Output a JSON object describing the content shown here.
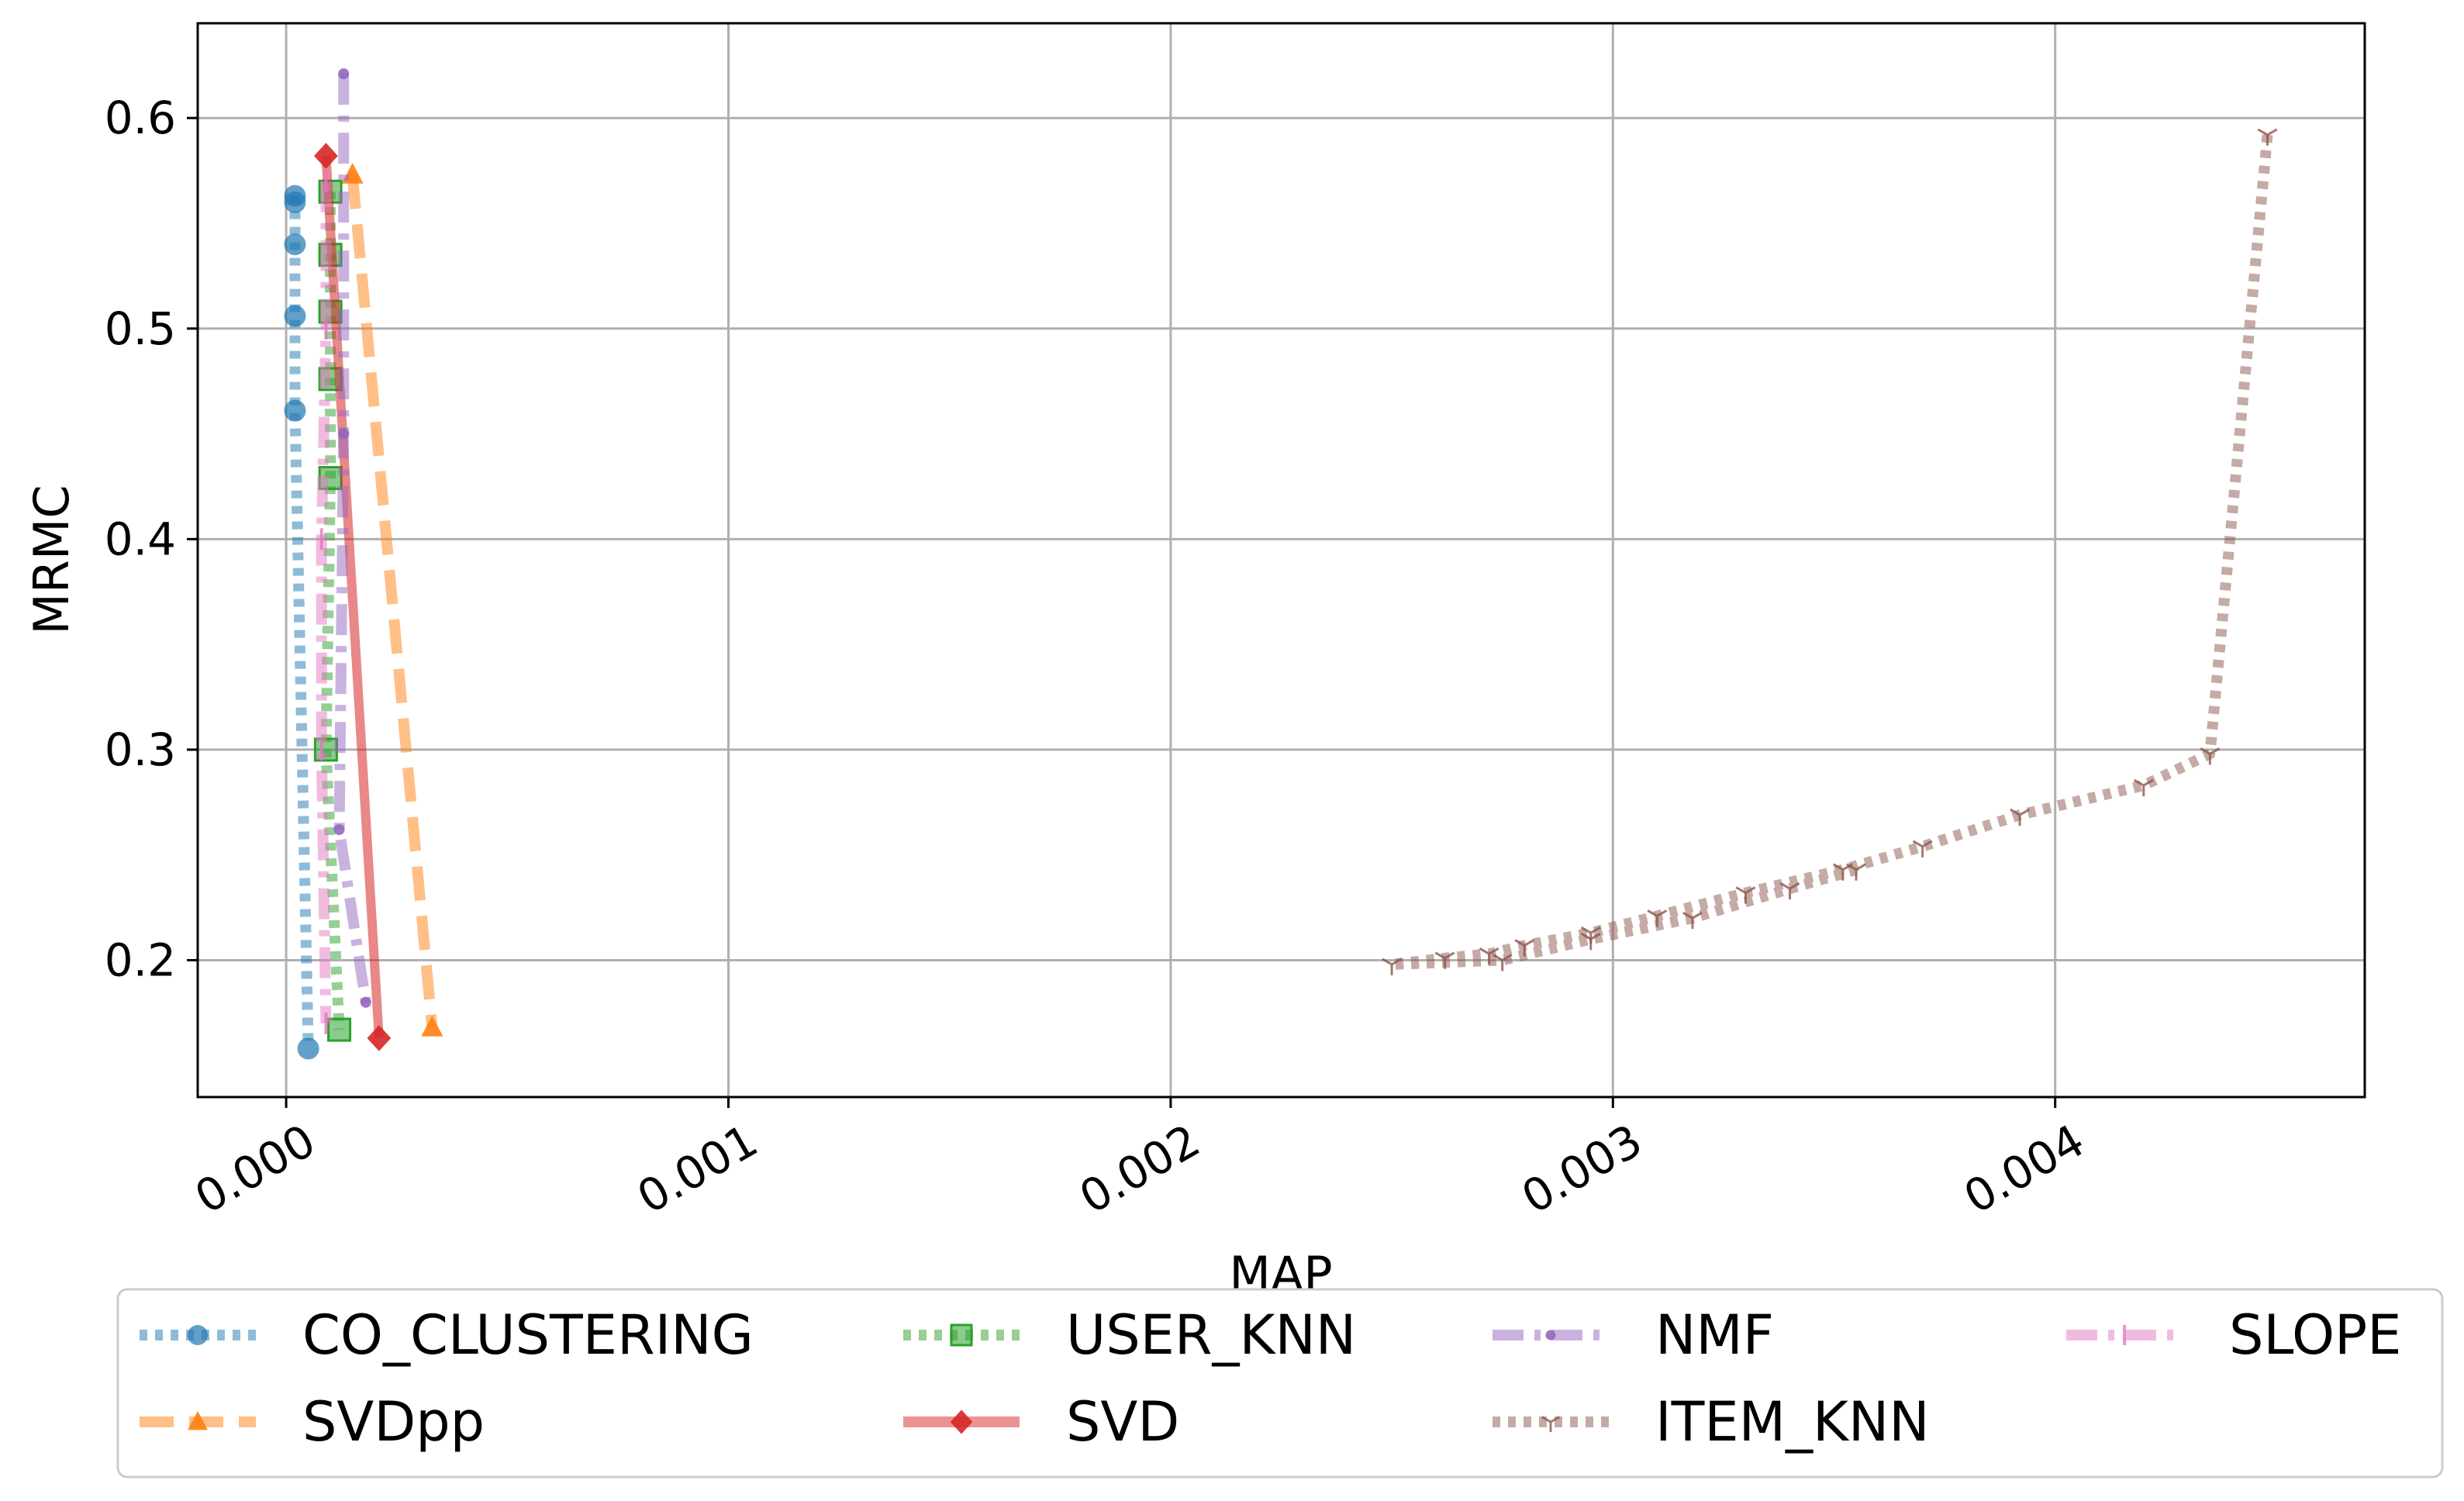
{
  "chart_data": {
    "type": "line",
    "title": "",
    "xlabel": "MAP",
    "ylabel": "MRMC",
    "xlim": [
      -0.0002,
      0.0047
    ],
    "ylim": [
      0.135,
      0.645
    ],
    "x_ticks": [
      0.0,
      0.001,
      0.002,
      0.003,
      0.004
    ],
    "x_tick_labels": [
      "0.000",
      "0.001",
      "0.002",
      "0.003",
      "0.004"
    ],
    "y_ticks": [
      0.2,
      0.3,
      0.4,
      0.5,
      0.6
    ],
    "y_tick_labels": [
      "0.2",
      "0.3",
      "0.4",
      "0.5",
      "0.6"
    ],
    "grid": true,
    "legend_position": "below",
    "series": [
      {
        "name": "CO_CLUSTERING",
        "color": "#1f77b4",
        "style": "dotted",
        "marker": "circle",
        "x": [
          2e-05,
          2e-05,
          2e-05,
          2e-05,
          2e-05,
          5e-05
        ],
        "y": [
          0.563,
          0.56,
          0.54,
          0.506,
          0.461,
          0.158
        ]
      },
      {
        "name": "SVDpp",
        "color": "#ff7f0e",
        "style": "dashed",
        "marker": "triangle",
        "x": [
          0.00015,
          0.00033
        ],
        "y": [
          0.573,
          0.168
        ]
      },
      {
        "name": "USER_KNN",
        "color": "#2ca02c",
        "style": "dotted",
        "marker": "square",
        "x": [
          0.0001,
          0.0001,
          0.0001,
          0.0001,
          0.0001,
          9e-05,
          0.00012
        ],
        "y": [
          0.565,
          0.535,
          0.508,
          0.476,
          0.429,
          0.3,
          0.167
        ]
      },
      {
        "name": "SVD",
        "color": "#d62728",
        "style": "solid",
        "marker": "diamond",
        "x": [
          9e-05,
          0.00021
        ],
        "y": [
          0.582,
          0.163
        ]
      },
      {
        "name": "NMF",
        "color": "#9467bd",
        "style": "dashdot",
        "marker": "point",
        "x": [
          0.00013,
          0.00013,
          0.00012,
          0.00018
        ],
        "y": [
          0.621,
          0.45,
          0.262,
          0.18
        ]
      },
      {
        "name": "ITEM_KNN",
        "color": "#8c564b",
        "style": "dotted",
        "marker": "tri_down",
        "x": [
          0.00448,
          0.00435,
          0.0042,
          0.00392,
          0.0037,
          0.00352,
          0.0033,
          0.0031,
          0.00295,
          0.0028,
          0.00272,
          0.00262,
          0.0025,
          0.00275,
          0.00295,
          0.00318,
          0.0034,
          0.00355
        ],
        "y": [
          0.592,
          0.298,
          0.283,
          0.269,
          0.254,
          0.243,
          0.232,
          0.221,
          0.213,
          0.207,
          0.203,
          0.201,
          0.198,
          0.2,
          0.21,
          0.22,
          0.234,
          0.243
        ]
      },
      {
        "name": "SLOPE",
        "color": "#e377c2",
        "style": "dashdot",
        "marker": "vline",
        "x": [
          9e-05,
          9e-05,
          8e-05,
          8e-05,
          9e-05
        ],
        "y": [
          0.57,
          0.5,
          0.4,
          0.3,
          0.17
        ]
      }
    ]
  }
}
